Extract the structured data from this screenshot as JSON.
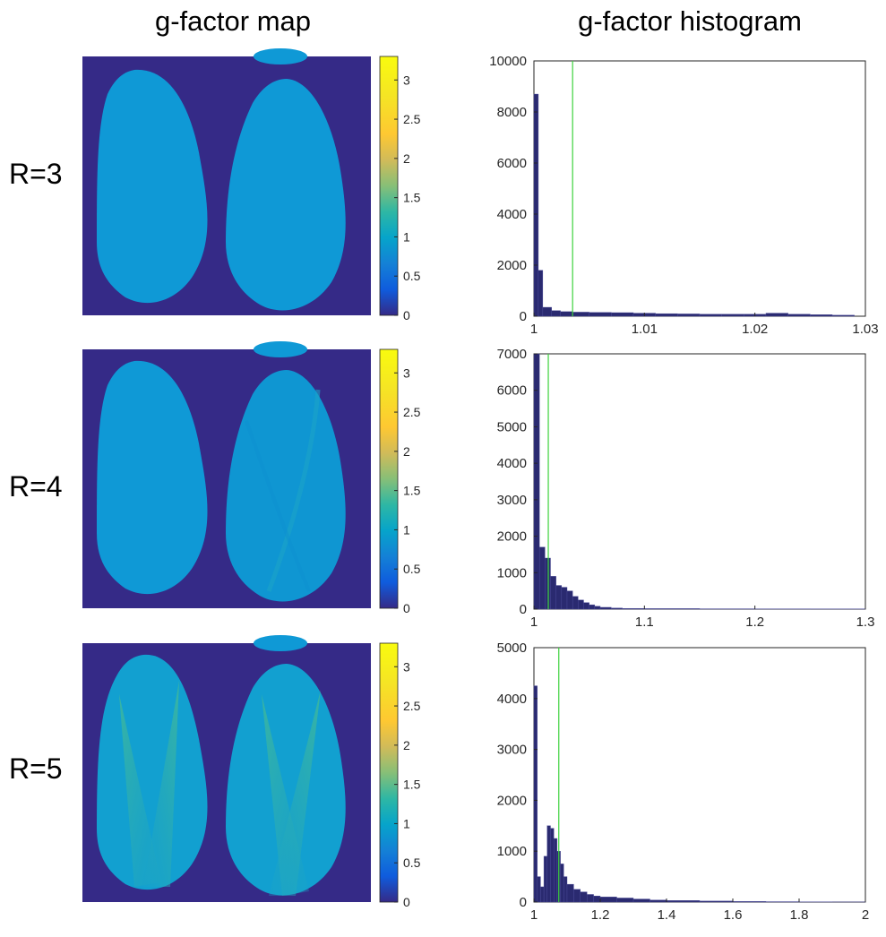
{
  "headers": {
    "left": "g-factor map",
    "right": "g-factor histogram"
  },
  "rows": [
    {
      "label": "R=3"
    },
    {
      "label": "R=4"
    },
    {
      "label": "R=5"
    }
  ],
  "colors": {
    "background_map": "#352a87",
    "lobe_uniform": "#0f99d6",
    "hist_bar": "#2a2a70",
    "marker_line": "#3cd23c",
    "axis": "#262626"
  },
  "colorbar": {
    "colormap": "parula",
    "range": [
      0,
      3.3
    ],
    "tick_labels": [
      "0",
      "0.5",
      "1",
      "1.5",
      "2",
      "2.5",
      "3"
    ]
  },
  "chart_data": [
    {
      "type": "bar",
      "title": "g-factor histogram R=3",
      "xlim": [
        1,
        1.03
      ],
      "ylim": [
        0,
        10000
      ],
      "x_tick_values": [
        1,
        1.01,
        1.02,
        1.03
      ],
      "x_tick_labels": [
        "1",
        "1.01",
        "1.02",
        "1.03"
      ],
      "y_tick_values": [
        0,
        2000,
        4000,
        6000,
        8000,
        10000
      ],
      "y_tick_labels": [
        "0",
        "2000",
        "4000",
        "6000",
        "8000",
        "10000"
      ],
      "marker_line_x": 1.0035,
      "bins": [
        [
          1.0,
          8700
        ],
        [
          1.0004,
          1800
        ],
        [
          1.0008,
          350
        ],
        [
          1.0016,
          220
        ],
        [
          1.0024,
          180
        ],
        [
          1.0035,
          160
        ],
        [
          1.005,
          150
        ],
        [
          1.007,
          140
        ],
        [
          1.009,
          120
        ],
        [
          1.011,
          100
        ],
        [
          1.013,
          90
        ],
        [
          1.015,
          80
        ],
        [
          1.017,
          80
        ],
        [
          1.019,
          80
        ],
        [
          1.021,
          120
        ],
        [
          1.023,
          80
        ],
        [
          1.025,
          60
        ],
        [
          1.027,
          40
        ]
      ]
    },
    {
      "type": "bar",
      "title": "g-factor histogram R=4",
      "xlim": [
        1,
        1.3
      ],
      "ylim": [
        0,
        7000
      ],
      "x_tick_values": [
        1,
        1.1,
        1.2,
        1.3
      ],
      "x_tick_labels": [
        "1",
        "1.1",
        "1.2",
        "1.3"
      ],
      "y_tick_values": [
        0,
        1000,
        2000,
        3000,
        4000,
        5000,
        6000,
        7000
      ],
      "y_tick_labels": [
        "0",
        "1000",
        "2000",
        "3000",
        "4000",
        "5000",
        "6000",
        "7000"
      ],
      "marker_line_x": 1.013,
      "bins": [
        [
          1.0,
          7000
        ],
        [
          1.005,
          1700
        ],
        [
          1.01,
          1400
        ],
        [
          1.015,
          900
        ],
        [
          1.02,
          650
        ],
        [
          1.025,
          600
        ],
        [
          1.03,
          500
        ],
        [
          1.035,
          350
        ],
        [
          1.04,
          250
        ],
        [
          1.045,
          180
        ],
        [
          1.05,
          120
        ],
        [
          1.055,
          80
        ],
        [
          1.06,
          50
        ],
        [
          1.07,
          30
        ],
        [
          1.08,
          20
        ],
        [
          1.1,
          15
        ],
        [
          1.15,
          10
        ],
        [
          1.2,
          8
        ],
        [
          1.25,
          5
        ]
      ]
    },
    {
      "type": "bar",
      "title": "g-factor histogram R=5",
      "xlim": [
        1,
        2
      ],
      "ylim": [
        0,
        5000
      ],
      "x_tick_values": [
        1,
        1.2,
        1.4,
        1.6,
        1.8,
        2
      ],
      "x_tick_labels": [
        "1",
        "1.2",
        "1.4",
        "1.6",
        "1.8",
        "2"
      ],
      "y_tick_values": [
        0,
        1000,
        2000,
        3000,
        4000,
        5000
      ],
      "y_tick_labels": [
        "0",
        "1000",
        "2000",
        "3000",
        "4000",
        "5000"
      ],
      "marker_line_x": 1.075,
      "bins": [
        [
          1.0,
          4250
        ],
        [
          1.01,
          500
        ],
        [
          1.02,
          300
        ],
        [
          1.03,
          900
        ],
        [
          1.04,
          1500
        ],
        [
          1.05,
          1450
        ],
        [
          1.06,
          1250
        ],
        [
          1.07,
          1000
        ],
        [
          1.08,
          750
        ],
        [
          1.09,
          500
        ],
        [
          1.1,
          350
        ],
        [
          1.12,
          250
        ],
        [
          1.14,
          200
        ],
        [
          1.16,
          150
        ],
        [
          1.18,
          120
        ],
        [
          1.2,
          100
        ],
        [
          1.25,
          80
        ],
        [
          1.3,
          60
        ],
        [
          1.35,
          40
        ],
        [
          1.4,
          30
        ],
        [
          1.5,
          20
        ],
        [
          1.6,
          12
        ],
        [
          1.7,
          8
        ],
        [
          1.8,
          5
        ],
        [
          1.9,
          3
        ]
      ]
    }
  ]
}
